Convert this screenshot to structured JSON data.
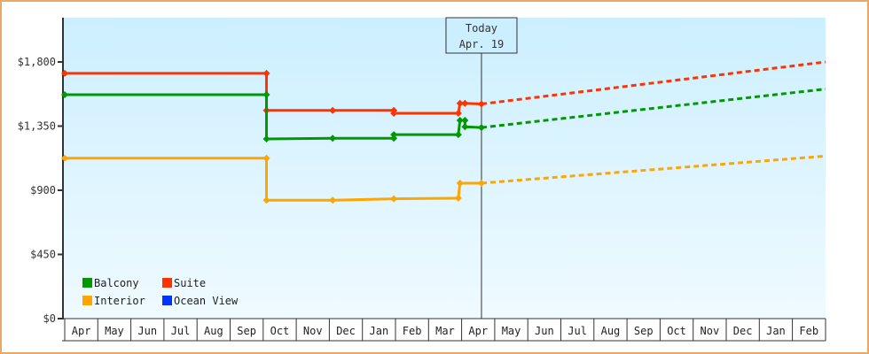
{
  "chart_data": {
    "type": "line",
    "title": "",
    "xlabel": "",
    "ylabel": "",
    "ylim": [
      0,
      2100
    ],
    "y_ticks": [
      0,
      450,
      900,
      1350,
      1800
    ],
    "y_tick_labels": [
      "$0",
      "$450",
      "$900",
      "$1,350",
      "$1,800"
    ],
    "x_tick_labels": [
      "Apr",
      "May",
      "Jun",
      "Jul",
      "Aug",
      "Sep",
      "Oct",
      "Nov",
      "Dec",
      "Jan",
      "Feb",
      "Mar",
      "Apr",
      "May",
      "Jun",
      "Jul",
      "Aug",
      "Sep",
      "Oct",
      "Nov",
      "Dec",
      "Jan",
      "Feb"
    ],
    "today_marker": {
      "line1": "Today",
      "line2": "Apr. 19",
      "month_index": 12.6
    },
    "legend": [
      {
        "name": "Balcony",
        "color": "#009900"
      },
      {
        "name": "Suite",
        "color": "#ff3300"
      },
      {
        "name": "Interior",
        "color": "#ffa500"
      },
      {
        "name": "Ocean View",
        "color": "#0033ff"
      }
    ],
    "series": [
      {
        "name": "Suite",
        "color": "#ff3300",
        "historical": [
          [
            0,
            1720
          ],
          [
            6.1,
            1720
          ],
          [
            6.1,
            1460
          ],
          [
            8.1,
            1460
          ],
          [
            9.95,
            1460
          ],
          [
            9.95,
            1440
          ],
          [
            11.9,
            1440
          ],
          [
            11.95,
            1510
          ],
          [
            12.1,
            1510
          ],
          [
            12.6,
            1505
          ]
        ],
        "forecast": [
          [
            12.6,
            1505
          ],
          [
            23,
            1800
          ]
        ]
      },
      {
        "name": "Balcony",
        "color": "#009900",
        "historical": [
          [
            0,
            1570
          ],
          [
            6.1,
            1570
          ],
          [
            6.1,
            1260
          ],
          [
            8.1,
            1265
          ],
          [
            9.95,
            1265
          ],
          [
            9.95,
            1290
          ],
          [
            11.9,
            1290
          ],
          [
            11.95,
            1390
          ],
          [
            12.1,
            1390
          ],
          [
            12.1,
            1345
          ],
          [
            12.6,
            1340
          ]
        ],
        "forecast": [
          [
            12.6,
            1340
          ],
          [
            23,
            1610
          ]
        ]
      },
      {
        "name": "Interior",
        "color": "#ffa500",
        "historical": [
          [
            0,
            1125
          ],
          [
            6.1,
            1125
          ],
          [
            6.1,
            830
          ],
          [
            8.1,
            830
          ],
          [
            9.95,
            840
          ],
          [
            11.9,
            845
          ],
          [
            11.95,
            950
          ],
          [
            12.6,
            950
          ]
        ],
        "forecast": [
          [
            12.6,
            950
          ],
          [
            23,
            1140
          ]
        ]
      },
      {
        "name": "Ocean View",
        "color": "#0033ff",
        "historical": [],
        "forecast": []
      }
    ]
  }
}
